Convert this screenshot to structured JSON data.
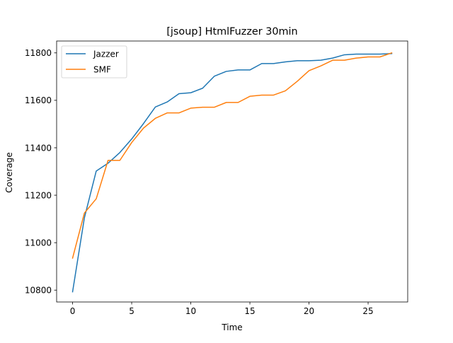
{
  "chart_data": {
    "type": "line",
    "title": "[jsoup] HtmlFuzzer 30min",
    "xlabel": "Time",
    "ylabel": "Coverage",
    "xlim": [
      -1.35,
      28.35
    ],
    "ylim": [
      10750,
      11850
    ],
    "xticks": [
      0,
      5,
      10,
      15,
      20,
      25
    ],
    "yticks": [
      10800,
      11000,
      11200,
      11400,
      11600,
      11800
    ],
    "grid": false,
    "legend_position": "top-left",
    "x": [
      0,
      1,
      2,
      3,
      4,
      5,
      6,
      7,
      8,
      9,
      10,
      11,
      12,
      13,
      14,
      15,
      16,
      17,
      18,
      19,
      20,
      21,
      22,
      23,
      24,
      25,
      26,
      27
    ],
    "series": [
      {
        "name": "Jazzer",
        "color": "#1f77b4",
        "values": [
          10793,
          11105,
          11302,
          11335,
          11380,
          11437,
          11502,
          11572,
          11593,
          11628,
          11632,
          11651,
          11702,
          11722,
          11728,
          11728,
          11755,
          11755,
          11762,
          11767,
          11767,
          11769,
          11778,
          11792,
          11795,
          11795,
          11795,
          11797
        ]
      },
      {
        "name": "SMF",
        "color": "#ff7f0e",
        "values": [
          10935,
          11125,
          11185,
          11347,
          11347,
          11422,
          11483,
          11524,
          11547,
          11547,
          11567,
          11571,
          11571,
          11591,
          11591,
          11617,
          11622,
          11622,
          11640,
          11680,
          11725,
          11745,
          11769,
          11769,
          11778,
          11783,
          11783,
          11800
        ]
      }
    ]
  }
}
